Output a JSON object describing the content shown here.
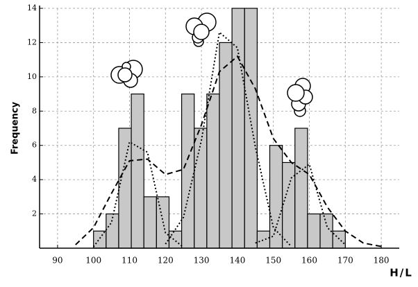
{
  "chart_data": {
    "type": "histogram",
    "x_label": "H/L",
    "y_label": "Frequency",
    "bins": [
      100,
      103.5,
      107,
      110.5,
      114,
      117.5,
      121,
      124.5,
      128,
      131.5,
      135,
      138.5,
      142,
      145.5,
      149,
      152.5,
      156,
      159.5,
      163,
      166.5,
      170
    ],
    "counts": [
      1,
      2,
      7,
      9,
      3,
      3,
      1,
      9,
      7,
      9,
      12,
      14,
      14,
      1,
      6,
      5,
      7,
      2,
      2,
      1
    ],
    "color": "#c8c8c8",
    "curves": [
      {
        "style": "dashed",
        "x": [
          95,
          100,
          105,
          110,
          115,
          120,
          125,
          130,
          135,
          140,
          145,
          150,
          155,
          160,
          165,
          170,
          175,
          180
        ],
        "values": [
          0.2,
          1.2,
          3.2,
          5.1,
          5.2,
          4.3,
          4.6,
          7.2,
          10.3,
          11.2,
          9.3,
          6.4,
          5.0,
          4.3,
          2.4,
          1.0,
          0.3,
          0.1
        ]
      },
      {
        "style": "dotted",
        "x": [
          100,
          105,
          110,
          115,
          120,
          125
        ],
        "values": [
          0.08,
          1.5,
          6.2,
          5.6,
          0.9,
          0.05
        ]
      },
      {
        "style": "dotted",
        "x": [
          120,
          125,
          130,
          135,
          140,
          145,
          150,
          155
        ],
        "values": [
          0.24,
          1.8,
          6.3,
          12.6,
          11.7,
          5.9,
          1.2,
          0.1
        ]
      },
      {
        "style": "dotted",
        "x": [
          145,
          150,
          155,
          160,
          165,
          170
        ],
        "values": [
          0.3,
          0.7,
          4.1,
          4.9,
          1.2,
          0.2
        ]
      }
    ],
    "xlim": [
      85,
      185
    ],
    "xticks": [
      90,
      100,
      110,
      120,
      130,
      140,
      150,
      160,
      170,
      180
    ],
    "ylim": [
      0,
      14
    ],
    "yticks": [
      2,
      4,
      6,
      8,
      10,
      12,
      14
    ],
    "grid": true
  }
}
